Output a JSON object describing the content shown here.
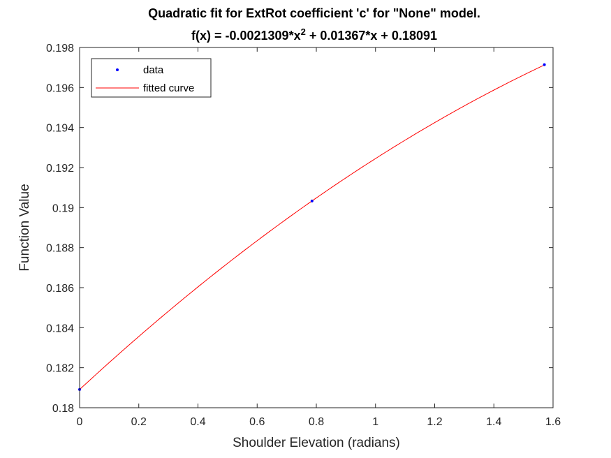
{
  "chart_data": {
    "type": "line",
    "title": "Quadratic fit for ExtRot coefficient 'c' for \"None\" model.",
    "subtitle_prefix": "f(x) = -0.0021309*x",
    "subtitle_superscript": "2",
    "subtitle_suffix": " + 0.01367*x + 0.18091",
    "xlabel": "Shoulder Elevation (radians)",
    "ylabel": "Function Value",
    "xlim": [
      0,
      1.6
    ],
    "ylim": [
      0.18,
      0.198
    ],
    "xticks": [
      0,
      0.2,
      0.4,
      0.6,
      0.8,
      1,
      1.2,
      1.4,
      1.6
    ],
    "xtick_labels": [
      "0",
      "0.2",
      "0.4",
      "0.6",
      "0.8",
      "1",
      "1.2",
      "1.4",
      "1.6"
    ],
    "yticks": [
      0.18,
      0.182,
      0.184,
      0.186,
      0.188,
      0.19,
      0.192,
      0.194,
      0.196,
      0.198
    ],
    "ytick_labels": [
      "0.18",
      "0.182",
      "0.184",
      "0.186",
      "0.188",
      "0.19",
      "0.192",
      "0.194",
      "0.196",
      "0.198"
    ],
    "grid": false,
    "legend_position": "top-left",
    "series": [
      {
        "name": "data",
        "style": "points",
        "color": "#0000ff",
        "x": [
          0,
          0.7854,
          1.5708
        ],
        "y": [
          0.18091,
          0.19033,
          0.19714
        ]
      },
      {
        "name": "fitted curve",
        "style": "line",
        "color": "#ff0000",
        "coefficients": {
          "a": -0.0021309,
          "b": 0.01367,
          "c": 0.18091
        },
        "x_range": [
          0,
          1.5708
        ]
      }
    ]
  }
}
